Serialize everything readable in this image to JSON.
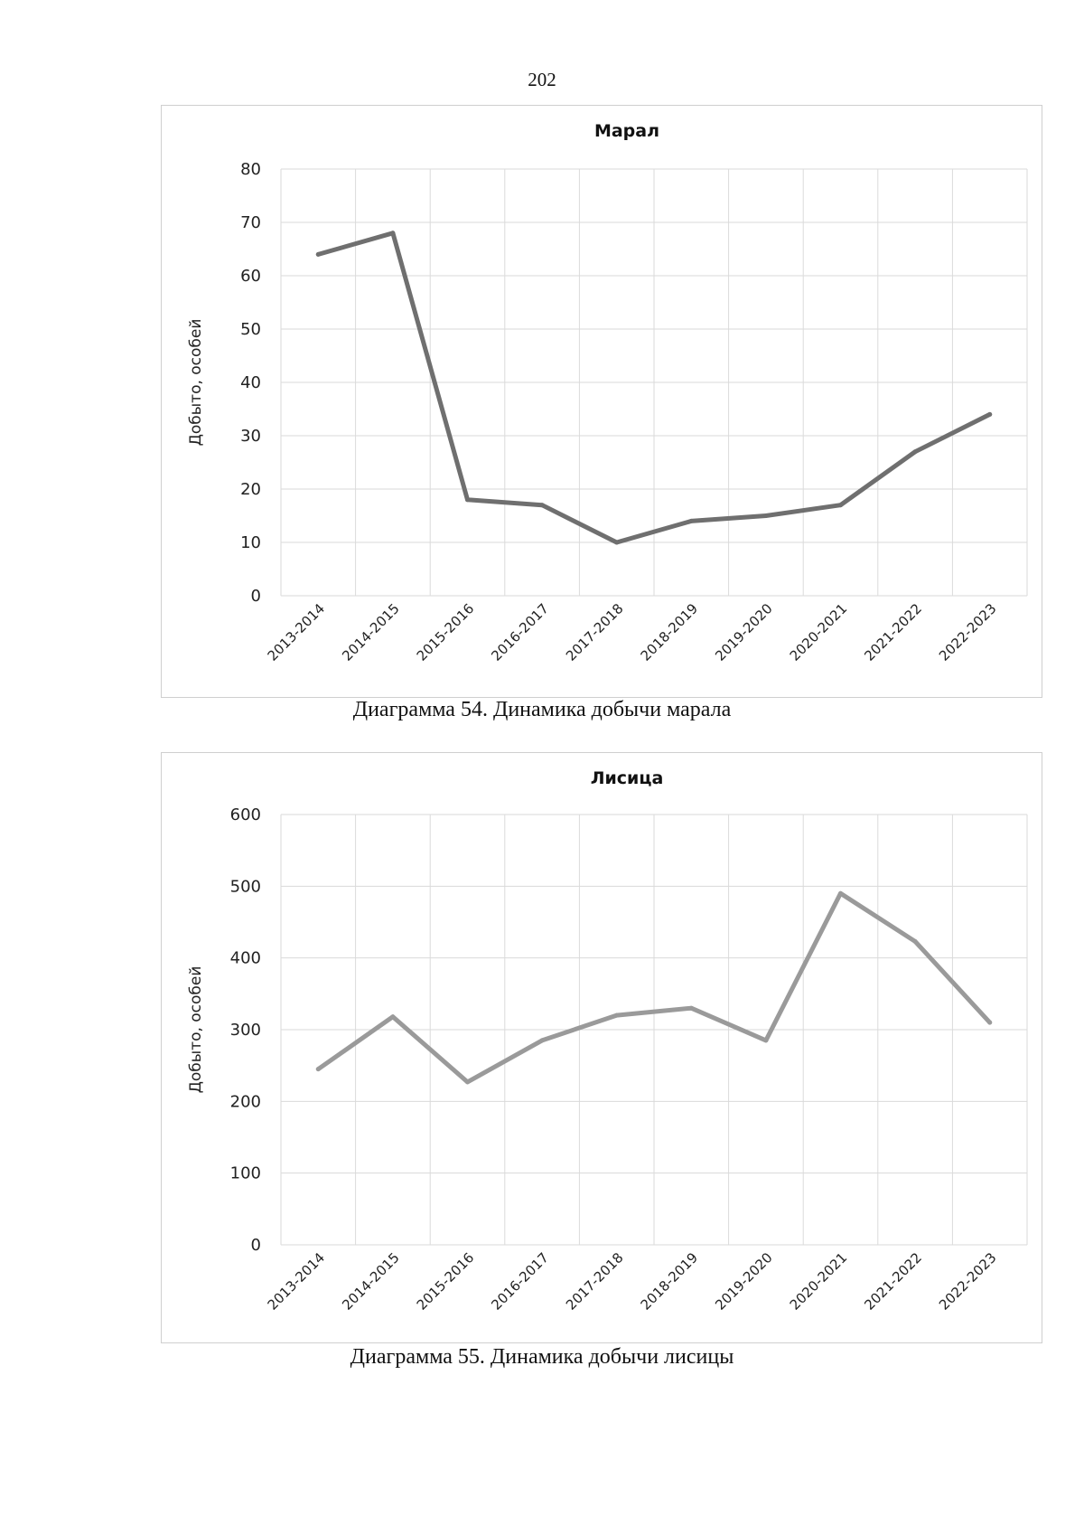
{
  "page": {
    "number": "202"
  },
  "chart_data": [
    {
      "type": "line",
      "title": "Марал",
      "caption": "Диаграмма 54. Динамика добычи марала",
      "xlabel": "",
      "ylabel": "Добыто, особей",
      "categories": [
        "2013-2014",
        "2014-2015",
        "2015-2016",
        "2016-2017",
        "2017-2018",
        "2018-2019",
        "2019-2020",
        "2020-2021",
        "2021-2022",
        "2022-2023"
      ],
      "series": [
        {
          "name": "Марал",
          "values": [
            64,
            68,
            18,
            17,
            10,
            14,
            15,
            17,
            27,
            34
          ]
        }
      ],
      "ylim": [
        0,
        80
      ],
      "yticks": [
        0,
        10,
        20,
        30,
        40,
        50,
        60,
        70,
        80
      ],
      "grid": true,
      "line_color": "#6f6f6f"
    },
    {
      "type": "line",
      "title": "Лисица",
      "caption": "Диаграмма 55. Динамика добычи лисицы",
      "xlabel": "",
      "ylabel": "Добыто, особей",
      "categories": [
        "2013-2014",
        "2014-2015",
        "2015-2016",
        "2016-2017",
        "2017-2018",
        "2018-2019",
        "2019-2020",
        "2020-2021",
        "2021-2022",
        "2022-2023"
      ],
      "series": [
        {
          "name": "Лисица",
          "values": [
            245,
            318,
            227,
            285,
            320,
            330,
            285,
            490,
            423,
            310
          ]
        }
      ],
      "ylim": [
        0,
        600
      ],
      "yticks": [
        0,
        100,
        200,
        300,
        400,
        500,
        600
      ],
      "grid": true,
      "line_color": "#9a9a9a"
    }
  ]
}
